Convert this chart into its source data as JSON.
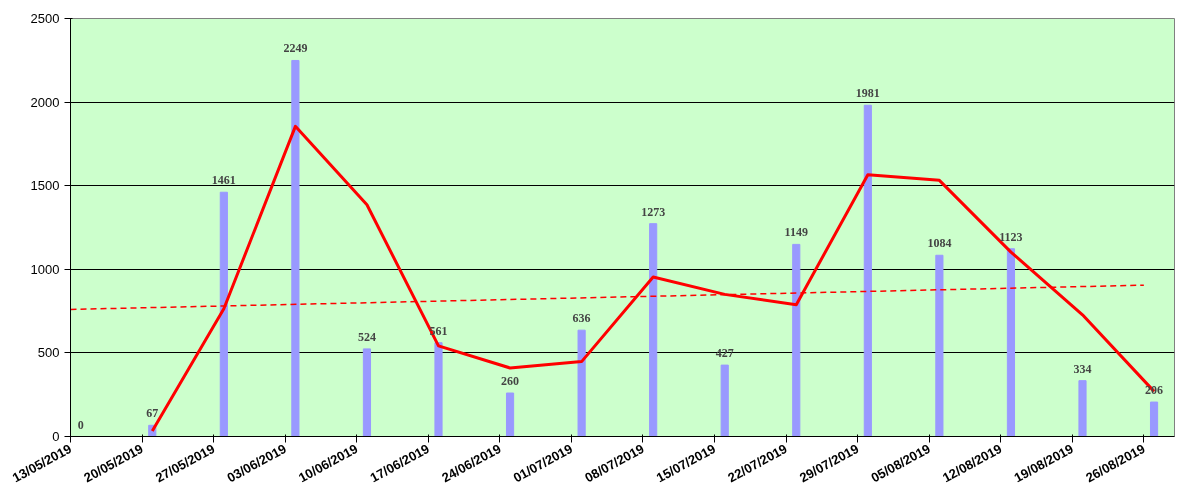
{
  "chart_data": {
    "type": "bar",
    "series": [
      {
        "color": "#9999ff",
        "x": [
          "2019-05-14",
          "2019-05-21",
          "2019-05-28",
          "2019-06-04",
          "2019-06-11",
          "2019-06-18",
          "2019-06-25",
          "2019-07-02",
          "2019-07-09",
          "2019-07-16",
          "2019-07-23",
          "2019-07-30",
          "2019-08-06",
          "2019-08-13",
          "2019-08-20",
          "2019-08-27"
        ],
        "values": [
          0,
          67,
          1461,
          2249,
          524,
          561,
          260,
          636,
          1273,
          427,
          1149,
          1981,
          1084,
          1123,
          334,
          206
        ],
        "value_labels": [
          "0",
          "67",
          "1461",
          "2249",
          "524",
          "561",
          "260",
          "636",
          "1273",
          "427",
          "1149",
          "1981",
          "1084",
          "1123",
          "334",
          "206"
        ]
      },
      {
        "type": "line",
        "color": "#ff0000",
        "line_style": "solid",
        "x": [
          "2019-05-21",
          "2019-05-28",
          "2019-06-04",
          "2019-06-11",
          "2019-06-18",
          "2019-06-25",
          "2019-07-02",
          "2019-07-09",
          "2019-07-16",
          "2019-07-23",
          "2019-07-30",
          "2019-08-06",
          "2019-08-13",
          "2019-08-20",
          "2019-08-27"
        ],
        "values": [
          33,
          764,
          1855,
          1386,
          542,
          410,
          448,
          954,
          850,
          788,
          1565,
          1532,
          1103,
          728,
          270
        ]
      },
      {
        "type": "line",
        "color": "#ff0000",
        "line_style": "dashed",
        "x": [
          "2019-05-13",
          "2019-08-26"
        ],
        "values": [
          760,
          905
        ]
      }
    ],
    "xlim": [
      "2019-05-13",
      "2019-08-29"
    ],
    "xticks": [
      {
        "value": "2019-05-13",
        "label": "13/05/2019"
      },
      {
        "value": "2019-05-20",
        "label": "20/05/2019"
      },
      {
        "value": "2019-05-27",
        "label": "27/05/2019"
      },
      {
        "value": "2019-06-03",
        "label": "03/06/2019"
      },
      {
        "value": "2019-06-10",
        "label": "10/06/2019"
      },
      {
        "value": "2019-06-17",
        "label": "17/06/2019"
      },
      {
        "value": "2019-06-24",
        "label": "24/06/2019"
      },
      {
        "value": "2019-07-01",
        "label": "01/07/2019"
      },
      {
        "value": "2019-07-08",
        "label": "08/07/2019"
      },
      {
        "value": "2019-07-15",
        "label": "15/07/2019"
      },
      {
        "value": "2019-07-22",
        "label": "22/07/2019"
      },
      {
        "value": "2019-07-29",
        "label": "29/07/2019"
      },
      {
        "value": "2019-08-05",
        "label": "05/08/2019"
      },
      {
        "value": "2019-08-12",
        "label": "12/08/2019"
      },
      {
        "value": "2019-08-19",
        "label": "19/08/2019"
      },
      {
        "value": "2019-08-26",
        "label": "26/08/2019"
      }
    ],
    "ylim": [
      0,
      2500
    ],
    "yticks": [
      0,
      500,
      1000,
      1500,
      2000,
      2500
    ],
    "grid": "y"
  }
}
